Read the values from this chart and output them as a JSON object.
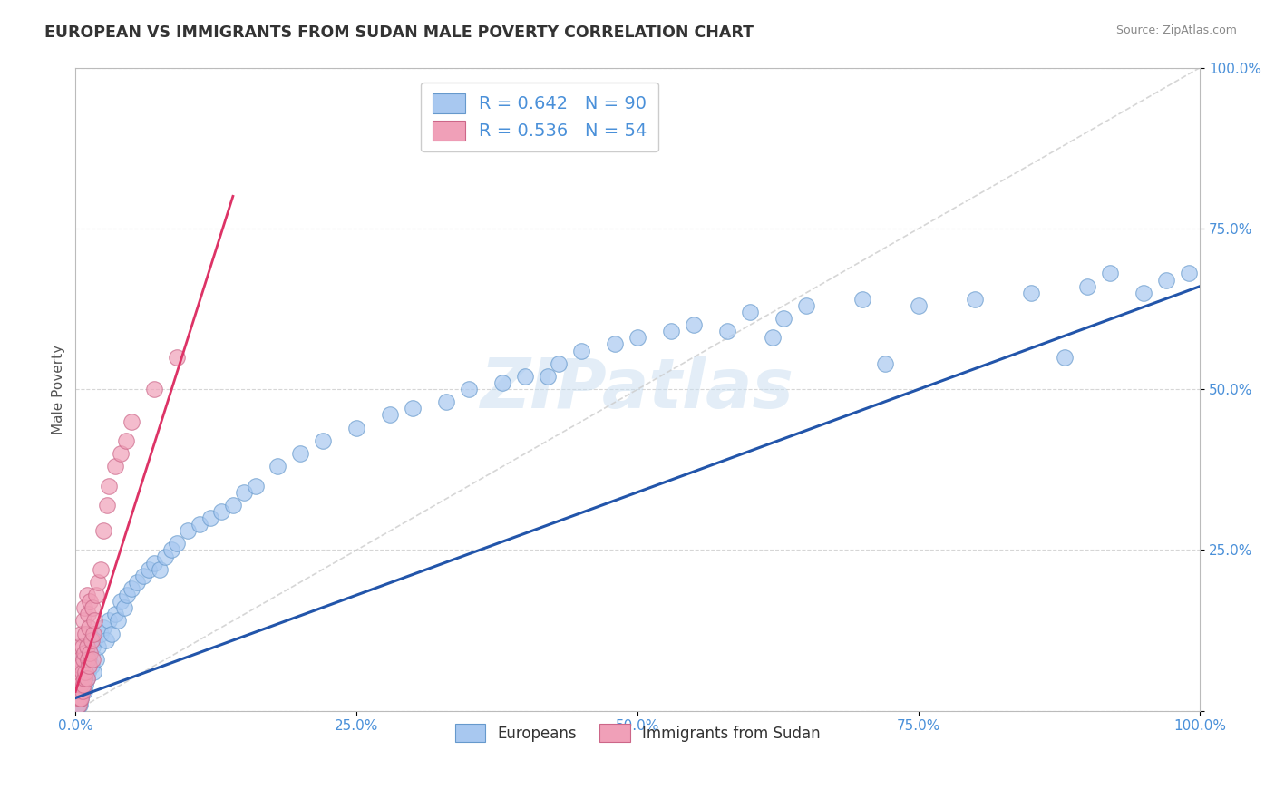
{
  "title": "EUROPEAN VS IMMIGRANTS FROM SUDAN MALE POVERTY CORRELATION CHART",
  "source": "Source: ZipAtlas.com",
  "ylabel": "Male Poverty",
  "xlim": [
    0,
    1
  ],
  "ylim": [
    0,
    1
  ],
  "xticks": [
    0.0,
    0.25,
    0.5,
    0.75,
    1.0
  ],
  "yticks": [
    0.0,
    0.25,
    0.5,
    0.75,
    1.0
  ],
  "xtick_labels": [
    "0.0%",
    "25.0%",
    "50.0%",
    "75.0%",
    "100.0%"
  ],
  "ytick_labels": [
    "",
    "25.0%",
    "50.0%",
    "75.0%",
    "100.0%"
  ],
  "blue_color": "#a8c8f0",
  "pink_color": "#f0a0b8",
  "blue_line_color": "#2255aa",
  "pink_line_color": "#dd3366",
  "legend_blue_label": "Europeans",
  "legend_pink_label": "Immigrants from Sudan",
  "R_blue": 0.642,
  "N_blue": 90,
  "R_pink": 0.536,
  "N_pink": 54,
  "watermark": "ZIPatlas",
  "blue_slope": 0.64,
  "blue_intercept": 0.02,
  "pink_slope": 5.5,
  "pink_intercept": 0.03,
  "pink_line_x_end": 0.14,
  "ref_line_color": "#cccccc",
  "europeans_x": [
    0.001,
    0.002,
    0.002,
    0.003,
    0.003,
    0.003,
    0.004,
    0.004,
    0.004,
    0.005,
    0.005,
    0.005,
    0.006,
    0.006,
    0.007,
    0.007,
    0.008,
    0.008,
    0.009,
    0.009,
    0.01,
    0.01,
    0.011,
    0.012,
    0.013,
    0.014,
    0.015,
    0.016,
    0.017,
    0.018,
    0.02,
    0.022,
    0.025,
    0.027,
    0.03,
    0.032,
    0.035,
    0.038,
    0.04,
    0.043,
    0.046,
    0.05,
    0.055,
    0.06,
    0.065,
    0.07,
    0.075,
    0.08,
    0.085,
    0.09,
    0.1,
    0.11,
    0.12,
    0.13,
    0.14,
    0.15,
    0.16,
    0.18,
    0.2,
    0.22,
    0.25,
    0.28,
    0.3,
    0.33,
    0.35,
    0.38,
    0.4,
    0.43,
    0.45,
    0.48,
    0.5,
    0.53,
    0.55,
    0.58,
    0.6,
    0.63,
    0.65,
    0.7,
    0.75,
    0.8,
    0.85,
    0.88,
    0.9,
    0.92,
    0.95,
    0.97,
    0.99,
    0.72,
    0.62,
    0.42
  ],
  "europeans_y": [
    0.02,
    0.01,
    0.03,
    0.01,
    0.02,
    0.04,
    0.01,
    0.02,
    0.05,
    0.02,
    0.03,
    0.06,
    0.03,
    0.07,
    0.04,
    0.08,
    0.03,
    0.05,
    0.04,
    0.09,
    0.05,
    0.1,
    0.06,
    0.08,
    0.09,
    0.07,
    0.1,
    0.06,
    0.11,
    0.08,
    0.1,
    0.12,
    0.13,
    0.11,
    0.14,
    0.12,
    0.15,
    0.14,
    0.17,
    0.16,
    0.18,
    0.19,
    0.2,
    0.21,
    0.22,
    0.23,
    0.22,
    0.24,
    0.25,
    0.26,
    0.28,
    0.29,
    0.3,
    0.31,
    0.32,
    0.34,
    0.35,
    0.38,
    0.4,
    0.42,
    0.44,
    0.46,
    0.47,
    0.48,
    0.5,
    0.51,
    0.52,
    0.54,
    0.56,
    0.57,
    0.58,
    0.59,
    0.6,
    0.59,
    0.62,
    0.61,
    0.63,
    0.64,
    0.63,
    0.64,
    0.65,
    0.55,
    0.66,
    0.68,
    0.65,
    0.67,
    0.68,
    0.54,
    0.58,
    0.52
  ],
  "sudan_x": [
    0.0005,
    0.001,
    0.001,
    0.002,
    0.002,
    0.002,
    0.003,
    0.003,
    0.003,
    0.003,
    0.004,
    0.004,
    0.004,
    0.005,
    0.005,
    0.005,
    0.005,
    0.006,
    0.006,
    0.006,
    0.007,
    0.007,
    0.007,
    0.008,
    0.008,
    0.008,
    0.009,
    0.009,
    0.01,
    0.01,
    0.01,
    0.011,
    0.011,
    0.012,
    0.012,
    0.013,
    0.013,
    0.014,
    0.015,
    0.015,
    0.016,
    0.017,
    0.018,
    0.02,
    0.022,
    0.025,
    0.028,
    0.03,
    0.035,
    0.04,
    0.045,
    0.05,
    0.07,
    0.09
  ],
  "sudan_y": [
    0.02,
    0.03,
    0.05,
    0.02,
    0.04,
    0.07,
    0.01,
    0.03,
    0.06,
    0.1,
    0.02,
    0.05,
    0.08,
    0.02,
    0.04,
    0.07,
    0.12,
    0.03,
    0.06,
    0.1,
    0.04,
    0.08,
    0.14,
    0.05,
    0.09,
    0.16,
    0.06,
    0.12,
    0.05,
    0.1,
    0.18,
    0.08,
    0.15,
    0.07,
    0.13,
    0.09,
    0.17,
    0.11,
    0.08,
    0.16,
    0.12,
    0.14,
    0.18,
    0.2,
    0.22,
    0.28,
    0.32,
    0.35,
    0.38,
    0.4,
    0.42,
    0.45,
    0.5,
    0.55
  ]
}
